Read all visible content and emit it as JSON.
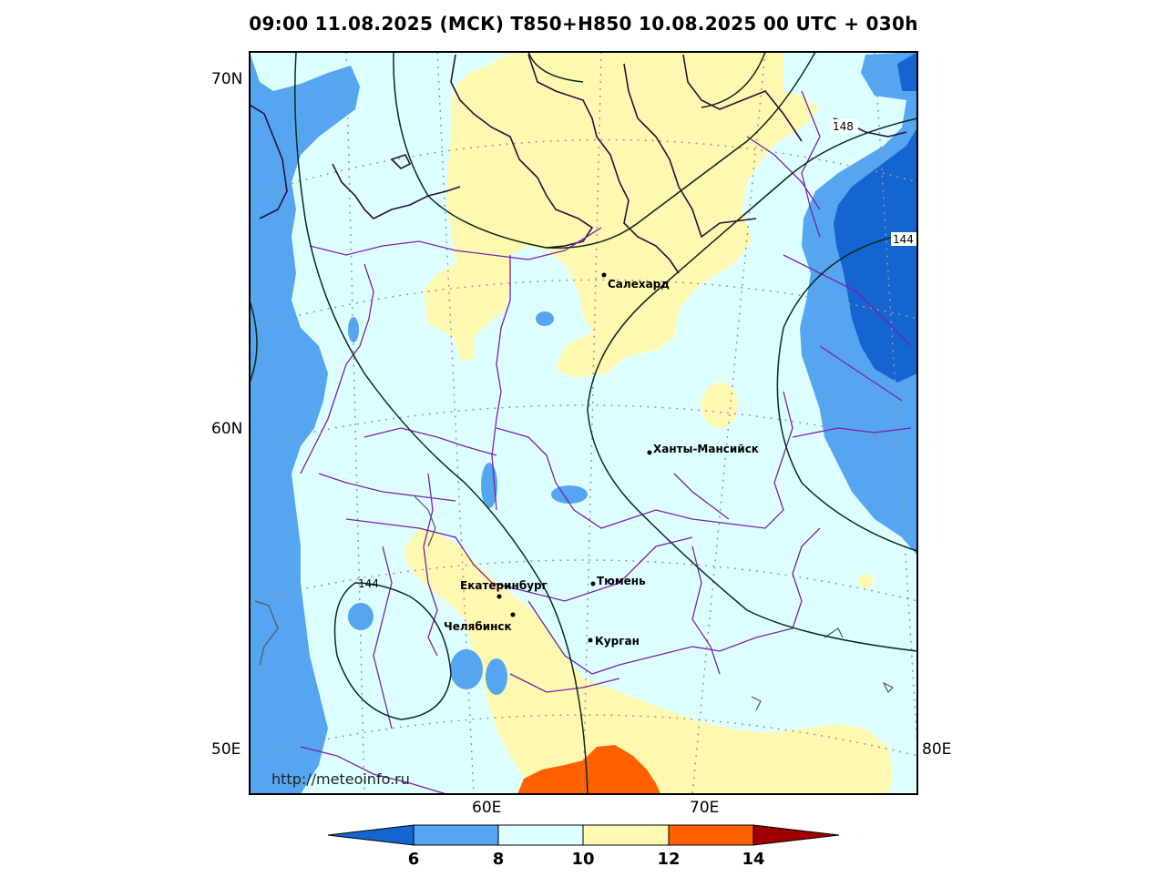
{
  "title": "09:00 11.08.2025 (МСК) T850+H850 10.08.2025 00 UTC + 030h",
  "axes": {
    "lat_labels": [
      "70N",
      "60N",
      "50E"
    ],
    "lon_labels": [
      "60E",
      "70E",
      "80E"
    ]
  },
  "cities": [
    {
      "name": "Салехард"
    },
    {
      "name": "Ханты-Мансийск"
    },
    {
      "name": "Тюмень"
    },
    {
      "name": "Екатеринбург"
    },
    {
      "name": "Челябинск"
    },
    {
      "name": "Курган"
    }
  ],
  "contour_labels": [
    "148",
    "144",
    "144"
  ],
  "watermark": "http://meteoinfo.ru",
  "colorbar": {
    "ticks": [
      "6",
      "8",
      "10",
      "12",
      "14"
    ],
    "colors": {
      "lt6": "#1565d0",
      "6_8": "#55a5f0",
      "8_10": "#deffff",
      "10_12": "#fff8b0",
      "12_14": "#ff6000",
      "gt14": "#a00000"
    }
  }
}
